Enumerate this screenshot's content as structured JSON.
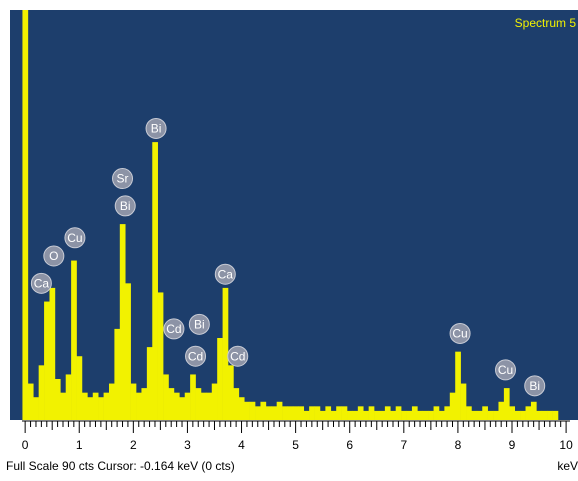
{
  "chart_data": {
    "type": "spectrum",
    "title": "Spectrum 5",
    "x_label": "keV",
    "footer": "Full Scale 90 cts  Cursor: -0.164 keV (0 cts)",
    "color": "#f2f200",
    "background": "#1d3e6c",
    "xlim": [
      -0.28,
      10.22
    ],
    "ylim": [
      0,
      90
    ],
    "xticks": [
      0,
      1,
      2,
      3,
      4,
      5,
      6,
      7,
      8,
      9,
      10
    ],
    "x": [
      0.0,
      0.1,
      0.2,
      0.3,
      0.4,
      0.5,
      0.6,
      0.7,
      0.8,
      0.9,
      1.0,
      1.1,
      1.2,
      1.3,
      1.4,
      1.5,
      1.6,
      1.7,
      1.8,
      1.9,
      2.0,
      2.1,
      2.2,
      2.3,
      2.4,
      2.5,
      2.6,
      2.7,
      2.8,
      2.9,
      3.0,
      3.1,
      3.2,
      3.3,
      3.4,
      3.5,
      3.6,
      3.7,
      3.8,
      3.9,
      4.0,
      4.1,
      4.2,
      4.3,
      4.4,
      4.5,
      4.6,
      4.7,
      4.8,
      4.9,
      5.0,
      5.1,
      5.2,
      5.3,
      5.4,
      5.5,
      5.6,
      5.7,
      5.8,
      5.9,
      6.0,
      6.1,
      6.2,
      6.3,
      6.4,
      6.5,
      6.6,
      6.7,
      6.8,
      6.9,
      7.0,
      7.1,
      7.2,
      7.3,
      7.4,
      7.5,
      7.6,
      7.7,
      7.8,
      7.9,
      8.0,
      8.1,
      8.2,
      8.3,
      8.4,
      8.5,
      8.6,
      8.7,
      8.8,
      8.9,
      9.0,
      9.1,
      9.2,
      9.3,
      9.4,
      9.5,
      9.6,
      9.7,
      9.8
    ],
    "values": [
      90,
      8,
      5,
      12,
      26,
      29,
      9,
      6,
      10,
      35,
      14,
      6,
      5,
      6,
      5,
      6,
      8,
      20,
      43,
      30,
      8,
      6,
      7,
      16,
      61,
      28,
      10,
      7,
      6,
      5,
      6,
      10,
      7,
      6,
      6,
      8,
      18,
      29,
      12,
      7,
      5,
      4,
      4,
      3,
      4,
      3,
      3,
      4,
      3,
      3,
      3,
      3,
      2,
      3,
      3,
      2,
      3,
      2,
      3,
      3,
      2,
      2,
      3,
      2,
      3,
      2,
      2,
      3,
      2,
      3,
      2,
      2,
      3,
      2,
      2,
      2,
      3,
      2,
      3,
      6,
      15,
      8,
      3,
      2,
      2,
      3,
      2,
      2,
      4,
      7,
      3,
      2,
      2,
      3,
      4,
      2,
      2,
      2,
      2
    ],
    "peak_labels": [
      {
        "label": "Ca",
        "x": 0.3,
        "y": 30
      },
      {
        "label": "O",
        "x": 0.53,
        "y": 36
      },
      {
        "label": "Cu",
        "x": 0.92,
        "y": 40
      },
      {
        "label": "Sr",
        "x": 1.8,
        "y": 53
      },
      {
        "label": "Bi",
        "x": 1.85,
        "y": 47
      },
      {
        "label": "Bi",
        "x": 2.42,
        "y": 64
      },
      {
        "label": "Cd",
        "x": 2.75,
        "y": 20
      },
      {
        "label": "Bi",
        "x": 3.22,
        "y": 21
      },
      {
        "label": "Cd",
        "x": 3.15,
        "y": 14
      },
      {
        "label": "Ca",
        "x": 3.7,
        "y": 32
      },
      {
        "label": "Cd",
        "x": 3.93,
        "y": 14
      },
      {
        "label": "Cu",
        "x": 8.04,
        "y": 19
      },
      {
        "label": "Cu",
        "x": 8.88,
        "y": 11
      },
      {
        "label": "Bi",
        "x": 9.42,
        "y": 7.5
      }
    ]
  }
}
